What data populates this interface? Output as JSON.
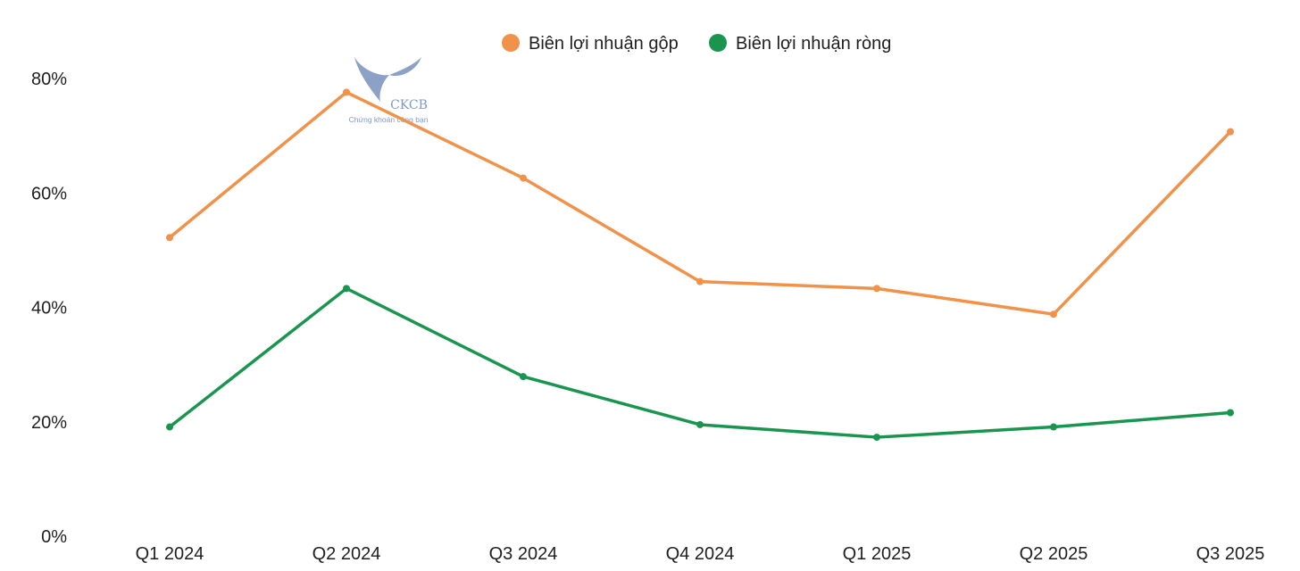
{
  "chart_data": {
    "type": "line",
    "categories": [
      "Q1 2024",
      "Q2 2024",
      "Q3 2024",
      "Q4 2024",
      "Q1 2025",
      "Q2 2025",
      "Q3 2025"
    ],
    "series": [
      {
        "name": "Biên lợi nhuận gộp",
        "color": "#F0924A",
        "values": [
          52.2,
          77.6,
          62.6,
          44.5,
          43.3,
          38.8,
          70.7
        ]
      },
      {
        "name": "Biên lợi nhuận ròng",
        "color": "#1A9550",
        "values": [
          19.1,
          43.3,
          27.9,
          19.5,
          17.3,
          19.1,
          21.6
        ]
      }
    ],
    "yticks": [
      "0%",
      "20%",
      "40%",
      "60%",
      "80%"
    ],
    "ylim": [
      0,
      80
    ],
    "legend_position": "top-center",
    "grid": false
  },
  "watermark": {
    "title": "CKCB",
    "subtitle": "Chứng khoán cùng bạn",
    "color": "#6F8FBD"
  }
}
